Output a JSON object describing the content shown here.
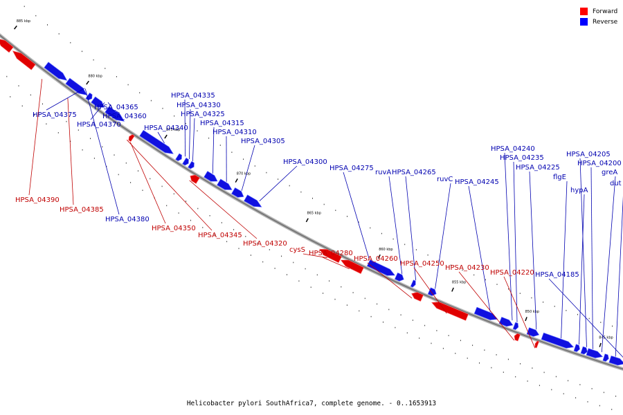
{
  "legend": [
    {
      "name": "Forward",
      "color": "#ff0000"
    },
    {
      "name": "Reverse",
      "color": "#0000ff"
    }
  ],
  "caption": "Helicobacter pylori SouthAfrica7, complete genome. - 0..1653913",
  "colors": {
    "forward": "#e00000",
    "reverse": "#1010e0",
    "forward_label": "#c00000",
    "reverse_label": "#0000b0",
    "backbone": "#777777"
  },
  "ticks": [
    "885 kbp",
    "880 kbp",
    "875 kbp",
    "870 kbp",
    "865 kbp",
    "860 kbp",
    "855 kbp",
    "850 kbp",
    "845 kbp"
  ],
  "genes": [
    {
      "name": "HPSA_04390",
      "strand": "forward"
    },
    {
      "name": "HPSA_04385",
      "strand": "forward"
    },
    {
      "name": "HPSA_04380",
      "strand": "reverse"
    },
    {
      "name": "HPSA_04375",
      "strand": "reverse"
    },
    {
      "name": "HPSA_04370",
      "strand": "reverse"
    },
    {
      "name": "HPSA_04365",
      "strand": "reverse"
    },
    {
      "name": "HPSA_04360",
      "strand": "reverse"
    },
    {
      "name": "HPSA_04350",
      "strand": "forward"
    },
    {
      "name": "HPSA_04345",
      "strand": "forward"
    },
    {
      "name": "HPSA_04340",
      "strand": "reverse"
    },
    {
      "name": "HPSA_04335",
      "strand": "reverse"
    },
    {
      "name": "HPSA_04330",
      "strand": "reverse"
    },
    {
      "name": "HPSA_04325",
      "strand": "reverse"
    },
    {
      "name": "HPSA_04320",
      "strand": "forward"
    },
    {
      "name": "HPSA_04315",
      "strand": "reverse"
    },
    {
      "name": "HPSA_04310",
      "strand": "reverse"
    },
    {
      "name": "HPSA_04305",
      "strand": "reverse"
    },
    {
      "name": "HPSA_04300",
      "strand": "reverse"
    },
    {
      "name": "cysS",
      "strand": "forward"
    },
    {
      "name": "HPSA_04280",
      "strand": "forward"
    },
    {
      "name": "HPSA_04275",
      "strand": "reverse"
    },
    {
      "name": "ruvA",
      "strand": "reverse"
    },
    {
      "name": "HPSA_04265",
      "strand": "reverse"
    },
    {
      "name": "HPSA_04260",
      "strand": "forward"
    },
    {
      "name": "ruvC",
      "strand": "reverse"
    },
    {
      "name": "HPSA_04250",
      "strand": "forward"
    },
    {
      "name": "HPSA_04245",
      "strand": "reverse"
    },
    {
      "name": "HPSA_04240",
      "strand": "reverse"
    },
    {
      "name": "HPSA_04235",
      "strand": "reverse"
    },
    {
      "name": "HPSA_04230",
      "strand": "forward"
    },
    {
      "name": "HPSA_04225",
      "strand": "reverse"
    },
    {
      "name": "HPSA_04220",
      "strand": "forward"
    },
    {
      "name": "flgE",
      "strand": "reverse"
    },
    {
      "name": "hypA",
      "strand": "reverse"
    },
    {
      "name": "HPSA_04205",
      "strand": "reverse"
    },
    {
      "name": "HPSA_04200",
      "strand": "reverse"
    },
    {
      "name": "greA",
      "strand": "reverse"
    },
    {
      "name": "dut",
      "strand": "reverse"
    },
    {
      "name": "HPSA_04185",
      "strand": "reverse"
    }
  ]
}
